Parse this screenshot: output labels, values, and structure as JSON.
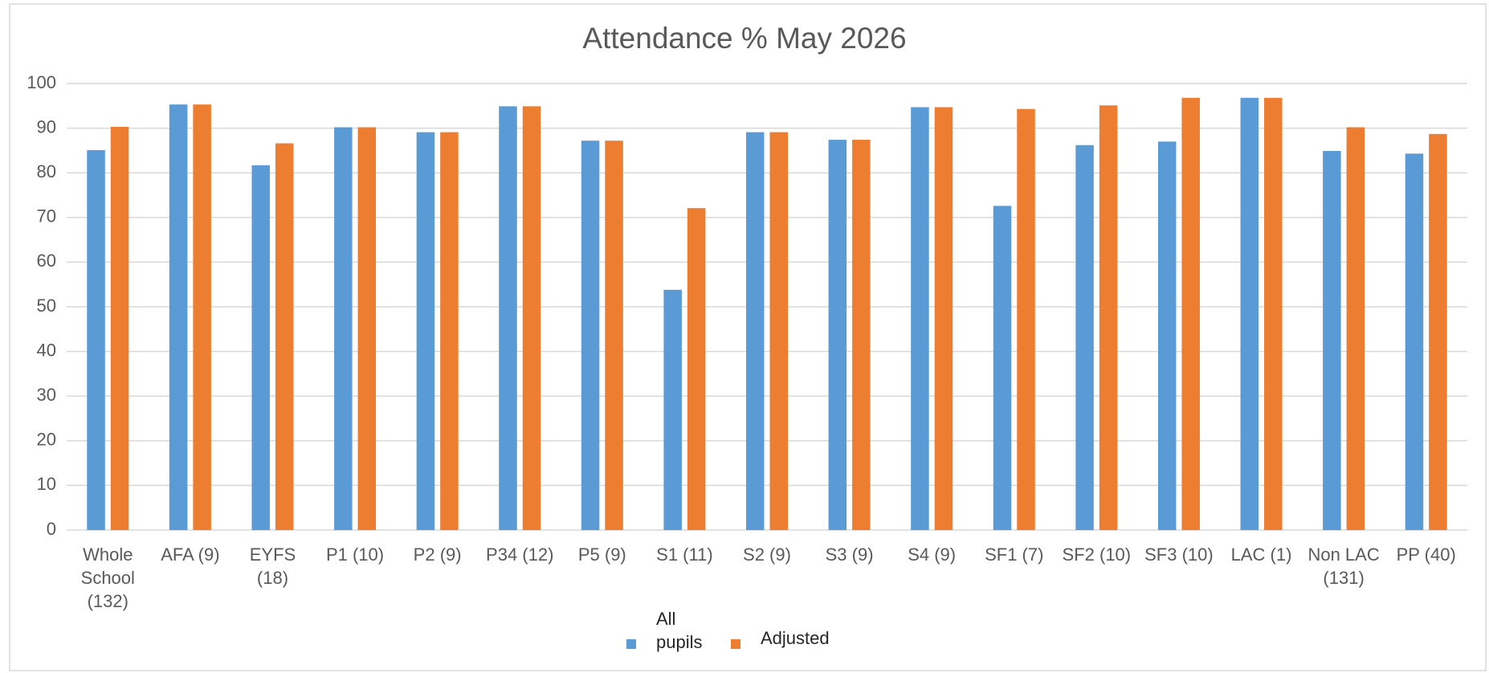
{
  "chart_data": {
    "type": "bar",
    "title": "Attendance % May 2026",
    "categories": [
      "Whole School (132)",
      "AFA (9)",
      "EYFS (18)",
      "P1 (10)",
      "P2 (9)",
      "P34 (12)",
      "P5 (9)",
      "S1 (11)",
      "S2 (9)",
      "S3 (9)",
      "S4 (9)",
      "SF1 (7)",
      "SF2 (10)",
      "SF3 (10)",
      "LAC (1)",
      "Non LAC (131)",
      "PP (40)"
    ],
    "series": [
      {
        "name": "All pupils",
        "color": "#5b9bd5",
        "values": [
          85.1,
          95.3,
          81.7,
          90.2,
          89.1,
          94.9,
          87.2,
          53.8,
          89.1,
          87.4,
          94.7,
          72.6,
          86.2,
          87.0,
          96.8,
          84.9,
          84.3
        ]
      },
      {
        "name": "Adjusted",
        "color": "#ed7d31",
        "values": [
          90.3,
          95.3,
          86.6,
          90.2,
          89.1,
          94.9,
          87.2,
          72.1,
          89.1,
          87.4,
          94.7,
          94.3,
          95.1,
          96.8,
          96.8,
          90.2,
          88.7
        ]
      }
    ],
    "ylim": [
      0,
      100
    ],
    "yticks": [
      0,
      10,
      20,
      30,
      40,
      50,
      60,
      70,
      80,
      90,
      100
    ],
    "grid": true,
    "legend": "bottom"
  }
}
